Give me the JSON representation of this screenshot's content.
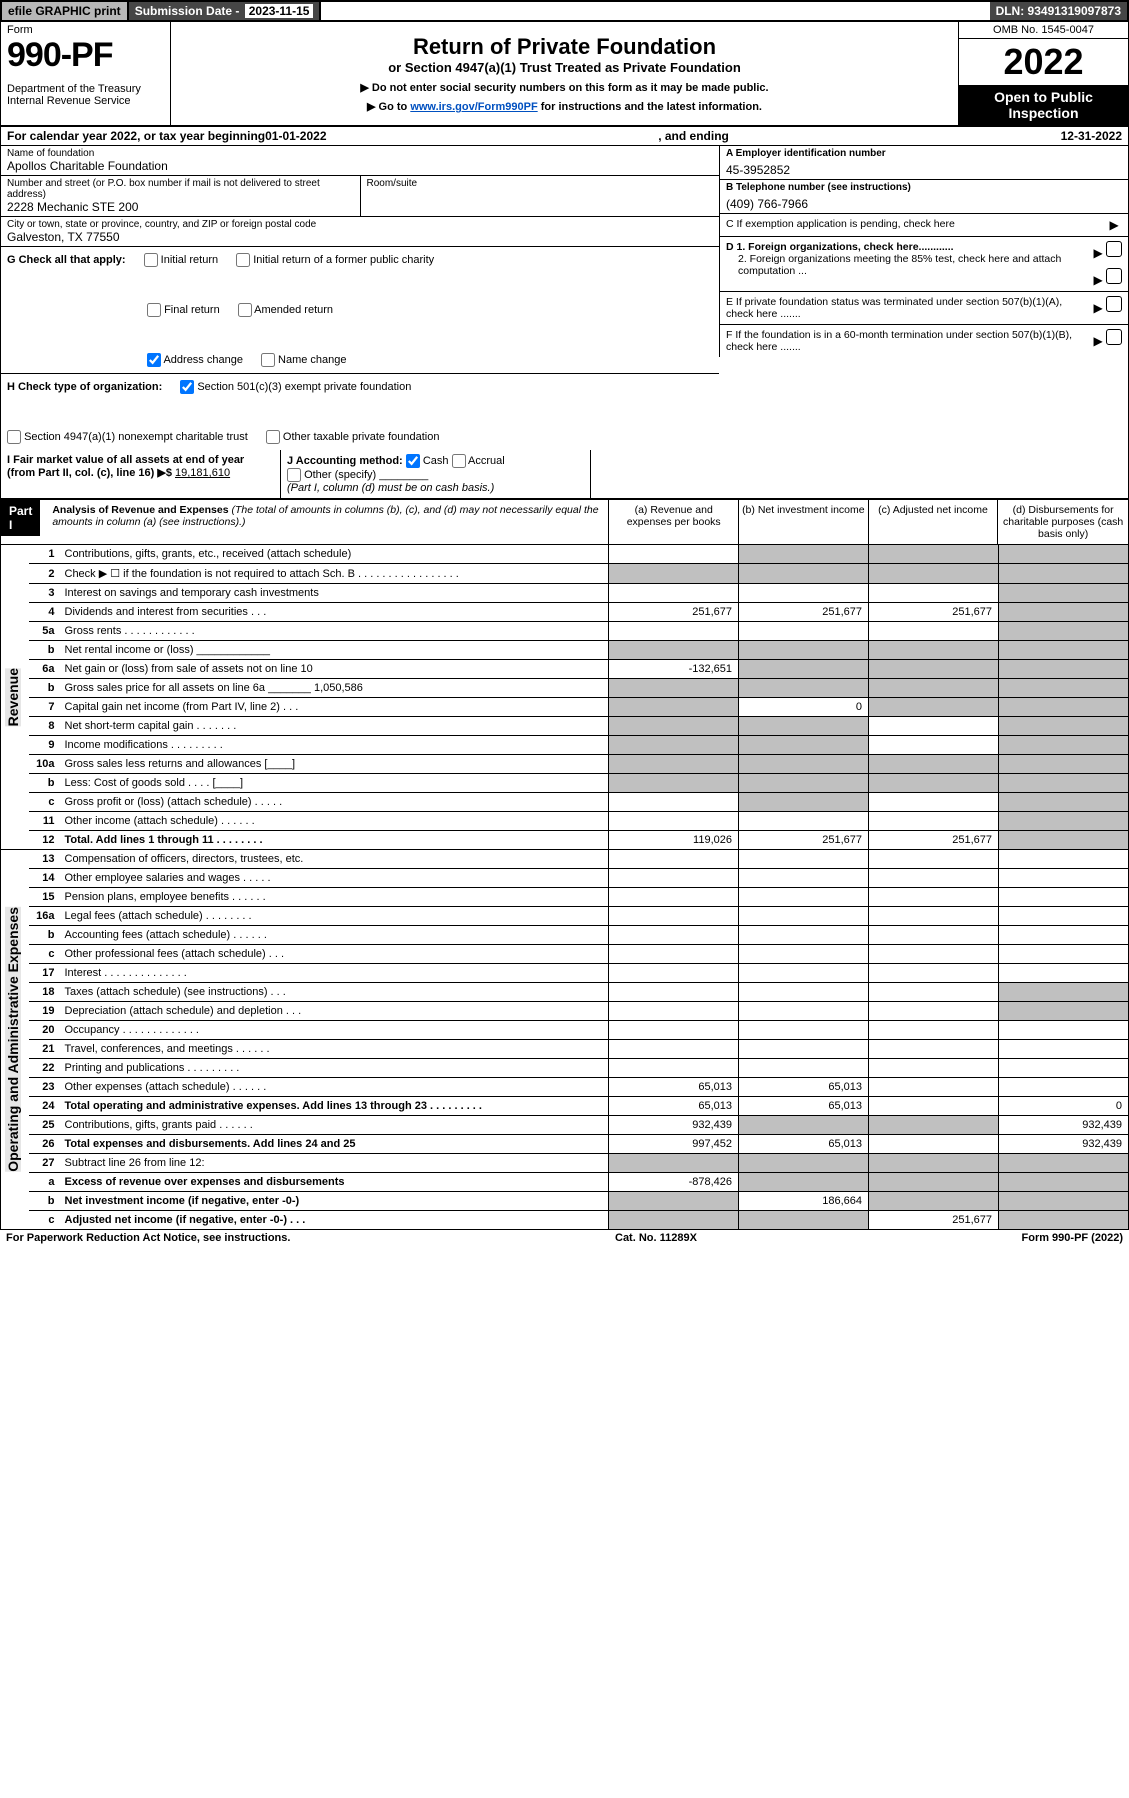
{
  "top": {
    "efile": "efile GRAPHIC print",
    "subdate_label": "Submission Date -",
    "subdate_value": "2023-11-15",
    "dln": "DLN: 93491319097873"
  },
  "head": {
    "form_word": "Form",
    "form_num": "990-PF",
    "dept": "Department of the Treasury\nInternal Revenue Service",
    "title": "Return of Private Foundation",
    "subtitle": "or Section 4947(a)(1) Trust Treated as Private Foundation",
    "inst1": "▶ Do not enter social security numbers on this form as it may be made public.",
    "inst2_pre": "▶ Go to ",
    "inst2_link": "www.irs.gov/Form990PF",
    "inst2_post": " for instructions and the latest information.",
    "omb": "OMB No. 1545-0047",
    "year": "2022",
    "open": "Open to Public Inspection"
  },
  "calyr": {
    "pre": "For calendar year 2022, or tax year beginning ",
    "begin": "01-01-2022",
    "mid": ", and ending ",
    "end": "12-31-2022"
  },
  "meta": {
    "name_lbl": "Name of foundation",
    "name_val": "Apollos Charitable Foundation",
    "addr_lbl": "Number and street (or P.O. box number if mail is not delivered to street address)",
    "addr_val": "2228 Mechanic STE 200",
    "room_lbl": "Room/suite",
    "city_lbl": "City or town, state or province, country, and ZIP or foreign postal code",
    "city_val": "Galveston, TX  77550",
    "ein_lbl": "A Employer identification number",
    "ein_val": "45-3952852",
    "tel_lbl": "B Telephone number (see instructions)",
    "tel_val": "(409) 766-7966",
    "c_lbl": "C If exemption application is pending, check here",
    "d1": "D 1. Foreign organizations, check here............",
    "d2": "2. Foreign organizations meeting the 85% test, check here and attach computation ...",
    "e": "E If private foundation status was terminated under section 507(b)(1)(A), check here .......",
    "f": "F If the foundation is in a 60-month termination under section 507(b)(1)(B), check here .......",
    "g_lbl": "G Check all that apply:",
    "g_opts": [
      "Initial return",
      "Initial return of a former public charity",
      "Final return",
      "Amended return",
      "Address change",
      "Name change"
    ],
    "h_lbl": "H Check type of organization:",
    "h_opts": [
      "Section 501(c)(3) exempt private foundation",
      "Section 4947(a)(1) nonexempt charitable trust",
      "Other taxable private foundation"
    ],
    "i_lbl": "I Fair market value of all assets at end of year (from Part II, col. (c), line 16) ▶$",
    "i_val": "19,181,610",
    "j_lbl": "J Accounting method:",
    "j_cash": "Cash",
    "j_accrual": "Accrual",
    "j_other": "Other (specify)",
    "j_note": "(Part I, column (d) must be on cash basis.)"
  },
  "part1": {
    "hdr": "Part I",
    "title": "Analysis of Revenue and Expenses",
    "note": " (The total of amounts in columns (b), (c), and (d) may not necessarily equal the amounts in column (a) (see instructions).)",
    "cols": [
      "(a) Revenue and expenses per books",
      "(b) Net investment income",
      "(c) Adjusted net income",
      "(d) Disbursements for charitable purposes (cash basis only)"
    ]
  },
  "sections": {
    "revenue": "Revenue",
    "opex": "Operating and Administrative Expenses"
  },
  "rows": [
    {
      "n": "1",
      "d": "Contributions, gifts, grants, etc., received (attach schedule)",
      "a": "",
      "b": "shade",
      "c": "shade",
      "e": "shade"
    },
    {
      "n": "2",
      "d": "Check ▶ ☐ if the foundation is not required to attach Sch. B  . . . . . . . . . . . . . . . . .",
      "a": "shade",
      "b": "shade",
      "c": "shade",
      "e": "shade"
    },
    {
      "n": "3",
      "d": "Interest on savings and temporary cash investments",
      "a": "",
      "b": "",
      "c": "",
      "e": "shade"
    },
    {
      "n": "4",
      "d": "Dividends and interest from securities  .  .  .",
      "a": "251,677",
      "b": "251,677",
      "c": "251,677",
      "e": "shade"
    },
    {
      "n": "5a",
      "d": "Gross rents  .  .  .  .  .  .  .  .  .  .  .  .",
      "a": "",
      "b": "",
      "c": "",
      "e": "shade"
    },
    {
      "n": "b",
      "d": "Net rental income or (loss)  ____________",
      "a": "shade",
      "b": "shade",
      "c": "shade",
      "e": "shade"
    },
    {
      "n": "6a",
      "d": "Net gain or (loss) from sale of assets not on line 10",
      "a": "-132,651",
      "b": "shade",
      "c": "shade",
      "e": "shade"
    },
    {
      "n": "b",
      "d": "Gross sales price for all assets on line 6a _______ 1,050,586",
      "a": "shade",
      "b": "shade",
      "c": "shade",
      "e": "shade"
    },
    {
      "n": "7",
      "d": "Capital gain net income (from Part IV, line 2)  .  .  .",
      "a": "shade",
      "b": "0",
      "c": "shade",
      "e": "shade"
    },
    {
      "n": "8",
      "d": "Net short-term capital gain  .  .  .  .  .  .  .",
      "a": "shade",
      "b": "shade",
      "c": "",
      "e": "shade"
    },
    {
      "n": "9",
      "d": "Income modifications  .  .  .  .  .  .  .  .  .",
      "a": "shade",
      "b": "shade",
      "c": "",
      "e": "shade"
    },
    {
      "n": "10a",
      "d": "Gross sales less returns and allowances  [____]",
      "a": "shade",
      "b": "shade",
      "c": "shade",
      "e": "shade"
    },
    {
      "n": "b",
      "d": "Less: Cost of goods sold  .  .  .  .  [____]",
      "a": "shade",
      "b": "shade",
      "c": "shade",
      "e": "shade"
    },
    {
      "n": "c",
      "d": "Gross profit or (loss) (attach schedule)  .  .  .  .  .",
      "a": "",
      "b": "shade",
      "c": "",
      "e": "shade"
    },
    {
      "n": "11",
      "d": "Other income (attach schedule)  .  .  .  .  .  .",
      "a": "",
      "b": "",
      "c": "",
      "e": "shade"
    },
    {
      "n": "12",
      "d": "Total. Add lines 1 through 11  .  .  .  .  .  .  .  .",
      "bold": true,
      "a": "119,026",
      "b": "251,677",
      "c": "251,677",
      "e": "shade"
    }
  ],
  "oprows": [
    {
      "n": "13",
      "d": "Compensation of officers, directors, trustees, etc.",
      "a": "",
      "b": "",
      "c": "",
      "e": ""
    },
    {
      "n": "14",
      "d": "Other employee salaries and wages  .  .  .  .  .",
      "a": "",
      "b": "",
      "c": "",
      "e": ""
    },
    {
      "n": "15",
      "d": "Pension plans, employee benefits  .  .  .  .  .  .",
      "a": "",
      "b": "",
      "c": "",
      "e": ""
    },
    {
      "n": "16a",
      "d": "Legal fees (attach schedule) .  .  .  .  .  .  .  .",
      "a": "",
      "b": "",
      "c": "",
      "e": ""
    },
    {
      "n": "b",
      "d": "Accounting fees (attach schedule)  .  .  .  .  .  .",
      "a": "",
      "b": "",
      "c": "",
      "e": ""
    },
    {
      "n": "c",
      "d": "Other professional fees (attach schedule)  .  .  .",
      "a": "",
      "b": "",
      "c": "",
      "e": ""
    },
    {
      "n": "17",
      "d": "Interest  .  .  .  .  .  .  .  .  .  .  .  .  .  .",
      "a": "",
      "b": "",
      "c": "",
      "e": ""
    },
    {
      "n": "18",
      "d": "Taxes (attach schedule) (see instructions)  .  .  .",
      "a": "",
      "b": "",
      "c": "",
      "e": "shade"
    },
    {
      "n": "19",
      "d": "Depreciation (attach schedule) and depletion  .  .  .",
      "a": "",
      "b": "",
      "c": "",
      "e": "shade"
    },
    {
      "n": "20",
      "d": "Occupancy .  .  .  .  .  .  .  .  .  .  .  .  .",
      "a": "",
      "b": "",
      "c": "",
      "e": ""
    },
    {
      "n": "21",
      "d": "Travel, conferences, and meetings .  .  .  .  .  .",
      "a": "",
      "b": "",
      "c": "",
      "e": ""
    },
    {
      "n": "22",
      "d": "Printing and publications .  .  .  .  .  .  .  .  .",
      "a": "",
      "b": "",
      "c": "",
      "e": ""
    },
    {
      "n": "23",
      "d": "Other expenses (attach schedule) .  .  .  .  .  .",
      "a": "65,013",
      "b": "65,013",
      "c": "",
      "e": ""
    },
    {
      "n": "24",
      "d": "Total operating and administrative expenses. Add lines 13 through 23  .  .  .  .  .  .  .  .  .",
      "bold": true,
      "a": "65,013",
      "b": "65,013",
      "c": "",
      "e": "0"
    },
    {
      "n": "25",
      "d": "Contributions, gifts, grants paid  .  .  .  .  .  .",
      "a": "932,439",
      "b": "shade",
      "c": "shade",
      "e": "932,439"
    },
    {
      "n": "26",
      "d": "Total expenses and disbursements. Add lines 24 and 25",
      "bold": true,
      "a": "997,452",
      "b": "65,013",
      "c": "",
      "e": "932,439"
    },
    {
      "n": "27",
      "d": "Subtract line 26 from line 12:",
      "a": "shade",
      "b": "shade",
      "c": "shade",
      "e": "shade"
    },
    {
      "n": "a",
      "d": "Excess of revenue over expenses and disbursements",
      "bold": true,
      "a": "-878,426",
      "b": "shade",
      "c": "shade",
      "e": "shade"
    },
    {
      "n": "b",
      "d": "Net investment income (if negative, enter -0-)",
      "bold": true,
      "a": "shade",
      "b": "186,664",
      "c": "shade",
      "e": "shade"
    },
    {
      "n": "c",
      "d": "Adjusted net income (if negative, enter -0-)  .  .  .",
      "bold": true,
      "a": "shade",
      "b": "shade",
      "c": "251,677",
      "e": "shade"
    }
  ],
  "footer": {
    "left": "For Paperwork Reduction Act Notice, see instructions.",
    "mid": "Cat. No. 11289X",
    "right": "Form 990-PF (2022)"
  },
  "colors": {
    "shade": "#c0c0c0",
    "darkbar": "#464646",
    "greybar": "#b8b8b8",
    "link": "#0050c0"
  }
}
